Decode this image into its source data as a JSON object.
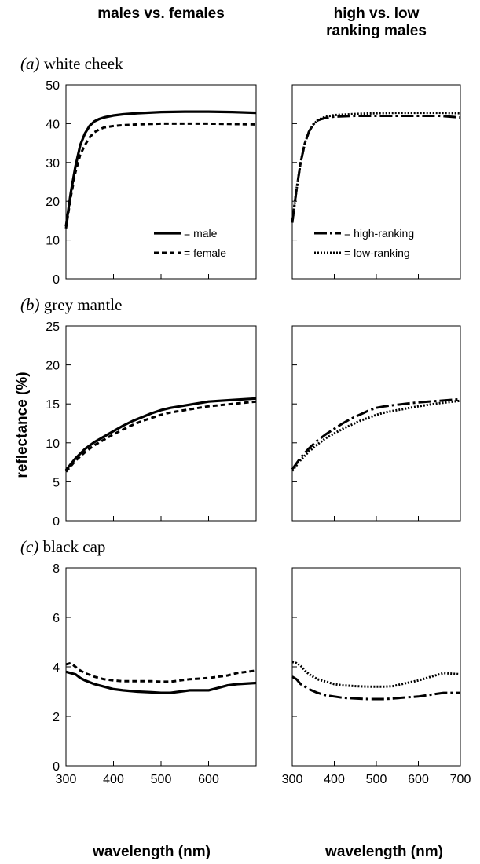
{
  "column_headers": [
    {
      "lines": [
        "males vs. females"
      ]
    },
    {
      "lines": [
        "high vs. low",
        "ranking males"
      ]
    }
  ],
  "y_axis_label": "reflectance (%)",
  "x_axis_label": "wavelength (nm)",
  "chart_data": [
    {
      "type": "line",
      "panel_prefix": "(a)",
      "panel_title": "white cheek",
      "column": 0,
      "xlim": [
        300,
        700
      ],
      "ylim": [
        0,
        50
      ],
      "yticks": [
        0,
        10,
        20,
        30,
        40,
        50
      ],
      "xticks": [
        400,
        500,
        600
      ],
      "xtick_labels": false,
      "legend": true,
      "legend_position": "bottom-right",
      "series": [
        {
          "name": "male",
          "style": "solid",
          "x": [
            300,
            310,
            320,
            330,
            340,
            350,
            360,
            370,
            380,
            400,
            420,
            450,
            500,
            550,
            600,
            650,
            700
          ],
          "y": [
            13.5,
            22,
            29,
            34.5,
            37.5,
            39.5,
            40.6,
            41.2,
            41.6,
            42.1,
            42.4,
            42.7,
            43,
            43.1,
            43.1,
            43,
            42.8
          ]
        },
        {
          "name": "female",
          "style": "dashed",
          "x": [
            300,
            310,
            320,
            330,
            340,
            350,
            360,
            370,
            380,
            400,
            420,
            450,
            500,
            550,
            600,
            650,
            700
          ],
          "y": [
            13,
            21,
            27.5,
            32,
            34.5,
            36.5,
            37.8,
            38.5,
            39,
            39.4,
            39.6,
            39.8,
            40,
            40,
            40,
            39.9,
            39.8
          ]
        }
      ]
    },
    {
      "type": "line",
      "panel_prefix": "",
      "panel_title": "",
      "column": 1,
      "xlim": [
        300,
        700
      ],
      "ylim": [
        0,
        50
      ],
      "yticks": [
        0,
        10,
        20,
        30,
        40,
        50
      ],
      "xticks": [
        400,
        500,
        600
      ],
      "xtick_labels": false,
      "legend": true,
      "legend_position": "bottom-right",
      "series": [
        {
          "name": "high-ranking",
          "style": "longdash",
          "x": [
            300,
            310,
            320,
            330,
            340,
            350,
            360,
            370,
            380,
            400,
            450,
            500,
            550,
            600,
            650,
            700
          ],
          "y": [
            14.5,
            23,
            30,
            35,
            38,
            39.8,
            40.8,
            41.2,
            41.5,
            41.8,
            42,
            42,
            42,
            42,
            42,
            41.6
          ]
        },
        {
          "name": "low-ranking",
          "style": "dotted",
          "x": [
            300,
            310,
            320,
            330,
            340,
            350,
            360,
            370,
            380,
            400,
            450,
            500,
            550,
            600,
            650,
            700
          ],
          "y": [
            14.5,
            23,
            30,
            35,
            38,
            39.8,
            40.8,
            41.4,
            41.8,
            42.2,
            42.5,
            42.7,
            42.8,
            42.8,
            42.8,
            42.7
          ]
        }
      ]
    },
    {
      "type": "line",
      "panel_prefix": "(b)",
      "panel_title": "grey mantle",
      "column": 0,
      "xlim": [
        300,
        700
      ],
      "ylim": [
        0,
        25
      ],
      "yticks": [
        0,
        5,
        10,
        15,
        20,
        25
      ],
      "xticks": [
        400,
        500,
        600
      ],
      "xtick_labels": false,
      "legend": false,
      "series": [
        {
          "name": "male",
          "style": "solid",
          "x": [
            300,
            320,
            340,
            360,
            380,
            400,
            420,
            440,
            460,
            480,
            500,
            520,
            550,
            580,
            600,
            650,
            700
          ],
          "y": [
            6.5,
            8,
            9.2,
            10.1,
            10.8,
            11.5,
            12.2,
            12.8,
            13.3,
            13.8,
            14.2,
            14.5,
            14.8,
            15.1,
            15.3,
            15.5,
            15.7
          ]
        },
        {
          "name": "female",
          "style": "dashed",
          "x": [
            300,
            320,
            340,
            360,
            380,
            400,
            420,
            440,
            460,
            480,
            500,
            520,
            550,
            580,
            600,
            650,
            700
          ],
          "y": [
            6.3,
            7.7,
            8.8,
            9.7,
            10.4,
            11.1,
            11.7,
            12.3,
            12.8,
            13.2,
            13.6,
            13.9,
            14.2,
            14.5,
            14.7,
            15,
            15.3
          ]
        }
      ]
    },
    {
      "type": "line",
      "panel_prefix": "",
      "panel_title": "",
      "column": 1,
      "xlim": [
        300,
        700
      ],
      "ylim": [
        0,
        25
      ],
      "yticks": [
        0,
        5,
        10,
        15,
        20,
        25
      ],
      "xticks": [
        400,
        500,
        600
      ],
      "xtick_labels": false,
      "legend": false,
      "series": [
        {
          "name": "high-ranking",
          "style": "longdash",
          "x": [
            300,
            320,
            340,
            360,
            380,
            400,
            420,
            440,
            460,
            480,
            500,
            520,
            550,
            600,
            650,
            700
          ],
          "y": [
            6.6,
            8.1,
            9.3,
            10.3,
            11.1,
            11.8,
            12.5,
            13.1,
            13.6,
            14.1,
            14.5,
            14.7,
            14.9,
            15.2,
            15.4,
            15.6
          ]
        },
        {
          "name": "low-ranking",
          "style": "dotted",
          "x": [
            300,
            320,
            340,
            360,
            380,
            400,
            420,
            440,
            460,
            480,
            500,
            520,
            550,
            600,
            650,
            700
          ],
          "y": [
            6.4,
            7.8,
            8.9,
            9.8,
            10.6,
            11.2,
            11.8,
            12.3,
            12.8,
            13.2,
            13.6,
            13.9,
            14.2,
            14.7,
            15.1,
            15.4
          ]
        }
      ]
    },
    {
      "type": "line",
      "panel_prefix": "(c)",
      "panel_title": "black cap",
      "column": 0,
      "xlim": [
        300,
        700
      ],
      "ylim": [
        0,
        8
      ],
      "yticks": [
        0,
        2,
        4,
        6,
        8
      ],
      "xticks": [
        300,
        400,
        500,
        600
      ],
      "xtick_labels": true,
      "legend": false,
      "series": [
        {
          "name": "male",
          "style": "solid",
          "x": [
            300,
            310,
            320,
            330,
            340,
            360,
            380,
            400,
            420,
            450,
            480,
            500,
            520,
            540,
            560,
            600,
            620,
            640,
            660,
            700
          ],
          "y": [
            3.8,
            3.75,
            3.7,
            3.55,
            3.45,
            3.3,
            3.2,
            3.1,
            3.05,
            3,
            2.97,
            2.95,
            2.95,
            3,
            3.05,
            3.05,
            3.15,
            3.25,
            3.3,
            3.35
          ]
        },
        {
          "name": "female",
          "style": "dashed",
          "x": [
            300,
            310,
            320,
            330,
            340,
            360,
            380,
            400,
            420,
            450,
            480,
            500,
            520,
            540,
            560,
            600,
            620,
            640,
            660,
            700
          ],
          "y": [
            4.1,
            4.15,
            4,
            3.85,
            3.75,
            3.6,
            3.5,
            3.45,
            3.42,
            3.42,
            3.42,
            3.4,
            3.4,
            3.45,
            3.5,
            3.55,
            3.6,
            3.65,
            3.75,
            3.85
          ]
        }
      ]
    },
    {
      "type": "line",
      "panel_prefix": "",
      "panel_title": "",
      "column": 1,
      "xlim": [
        300,
        700
      ],
      "ylim": [
        0,
        8
      ],
      "yticks": [
        0,
        2,
        4,
        6,
        8
      ],
      "xticks": [
        300,
        400,
        500,
        600,
        700
      ],
      "xtick_labels": true,
      "legend": false,
      "series": [
        {
          "name": "high-ranking",
          "style": "longdash",
          "x": [
            300,
            310,
            320,
            330,
            340,
            360,
            380,
            400,
            420,
            450,
            480,
            500,
            520,
            540,
            560,
            600,
            620,
            640,
            660,
            700
          ],
          "y": [
            3.6,
            3.5,
            3.3,
            3.2,
            3.1,
            2.95,
            2.85,
            2.8,
            2.75,
            2.72,
            2.7,
            2.7,
            2.7,
            2.72,
            2.75,
            2.8,
            2.85,
            2.9,
            2.95,
            2.95
          ]
        },
        {
          "name": "low-ranking",
          "style": "dotted",
          "x": [
            300,
            310,
            320,
            330,
            340,
            360,
            380,
            400,
            420,
            450,
            480,
            500,
            520,
            540,
            560,
            600,
            620,
            640,
            660,
            700
          ],
          "y": [
            4.2,
            4.15,
            4.05,
            3.85,
            3.7,
            3.5,
            3.4,
            3.3,
            3.25,
            3.22,
            3.2,
            3.2,
            3.2,
            3.22,
            3.3,
            3.45,
            3.55,
            3.65,
            3.75,
            3.7
          ]
        }
      ]
    }
  ]
}
